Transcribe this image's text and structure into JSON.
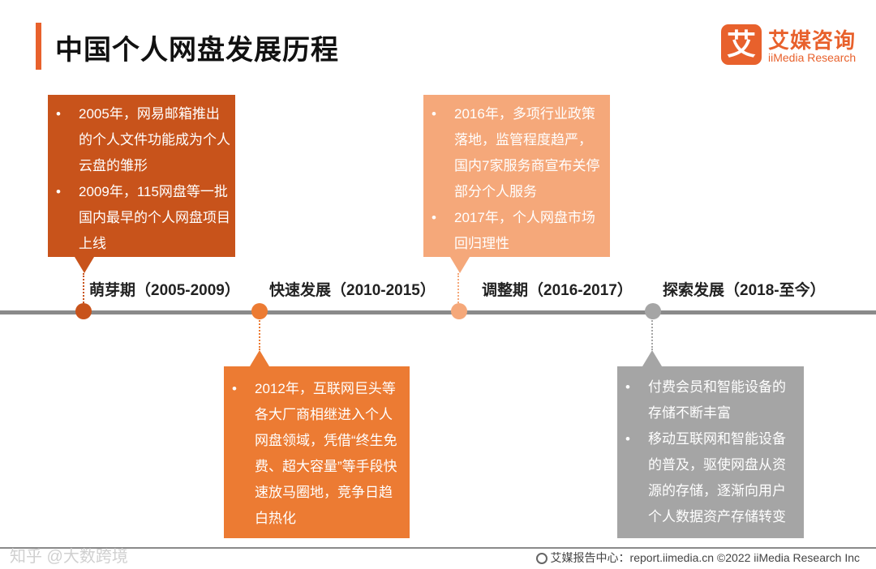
{
  "title": "中国个人网盘发展历程",
  "logo": {
    "mark": "艾",
    "cn": "艾媒咨询",
    "en": "iiMedia Research"
  },
  "colors": {
    "accent": "#e8612c",
    "stage1": "#c8531b",
    "stage2": "#ec7b33",
    "stage3": "#f5a87a",
    "stage4": "#a5a5a5",
    "timeline": "#8a8a8a"
  },
  "phases": [
    {
      "label": "萌芽期（2005-2009）",
      "items": [
        "2005年，网易邮箱推出的个人文件功能成为个人云盘的雏形",
        "2009年，115网盘等一批国内最早的个人网盘项目上线"
      ]
    },
    {
      "label": "快速发展（2010-2015）",
      "items": [
        "2012年，互联网巨头等各大厂商相继进入个人网盘领域，凭借“终生免费、超大容量”等手段快速放马圈地，竞争日趋白热化"
      ]
    },
    {
      "label": "调整期（2016-2017）",
      "items": [
        "2016年，多项行业政策落地，监管程度趋严，国内7家服务商宣布关停部分个人服务",
        "2017年，个人网盘市场回归理性"
      ]
    },
    {
      "label": "探索发展（2018-至今）",
      "items": [
        "付费会员和智能设备的存储不断丰富",
        "移动互联网和智能设备的普及，驱使网盘从资源的存储，逐渐向用户个人数据资产存储转变"
      ]
    }
  ],
  "footer": {
    "icon": "globe-icon",
    "text": "艾媒报告中心：report.iimedia.cn  ©2022 iiMedia Research Inc"
  },
  "watermark": "知乎 @大数跨境"
}
